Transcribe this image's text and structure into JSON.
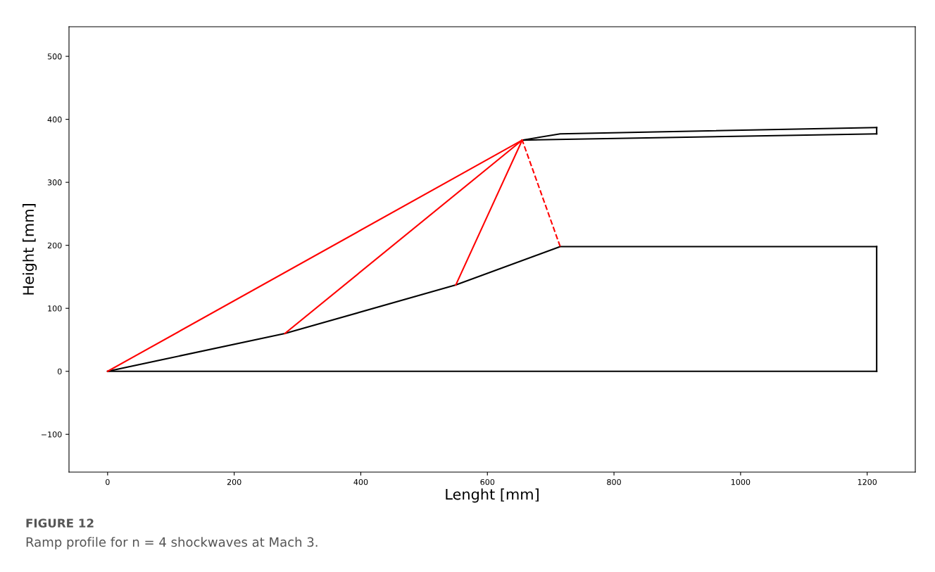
{
  "chart_data": {
    "type": "line",
    "xlabel": "Lenght [mm]",
    "ylabel": "Height [mm]",
    "xlim": [
      -61,
      1276
    ],
    "ylim": [
      -160,
      547
    ],
    "xticks": [
      0,
      200,
      400,
      600,
      800,
      1000,
      1200
    ],
    "yticks": [
      {
        "value": -100,
        "label": "−100"
      },
      0,
      100,
      200,
      300,
      400,
      500
    ],
    "grid": false,
    "legend": false,
    "marker": "none",
    "series": [
      {
        "color": "#000000",
        "line_style": "solid",
        "x": [
          0,
          280,
          550,
          715,
          1215
        ],
        "values": [
          0,
          60,
          137,
          198,
          198
        ]
      },
      {
        "color": "#000000",
        "line_style": "solid",
        "x": [
          0,
          1215
        ],
        "values": [
          0,
          0
        ]
      },
      {
        "color": "#000000",
        "line_style": "solid",
        "x": [
          1215,
          1215
        ],
        "values": [
          0,
          198
        ]
      },
      {
        "color": "#000000",
        "line_style": "solid",
        "x": [
          655,
          715,
          1215
        ],
        "values": [
          367,
          377,
          387
        ]
      },
      {
        "color": "#000000",
        "line_style": "solid",
        "x": [
          655,
          1215
        ],
        "values": [
          367,
          377
        ]
      },
      {
        "color": "#000000",
        "line_style": "solid",
        "x": [
          1215,
          1215
        ],
        "values": [
          377,
          387
        ]
      },
      {
        "color": "#ff0000",
        "line_style": "solid",
        "x": [
          0,
          655
        ],
        "values": [
          0,
          367
        ]
      },
      {
        "color": "#ff0000",
        "line_style": "solid",
        "x": [
          280,
          655
        ],
        "values": [
          60,
          367
        ]
      },
      {
        "color": "#ff0000",
        "line_style": "solid",
        "x": [
          550,
          655
        ],
        "values": [
          137,
          367
        ]
      },
      {
        "color": "#ff0000",
        "line_style": "dashed",
        "x": [
          715,
          655
        ],
        "values": [
          198,
          367
        ]
      }
    ],
    "annotations": [
      "FIGURE 12",
      "Ramp profile for n = 4 shockwaves at Mach 3."
    ]
  }
}
